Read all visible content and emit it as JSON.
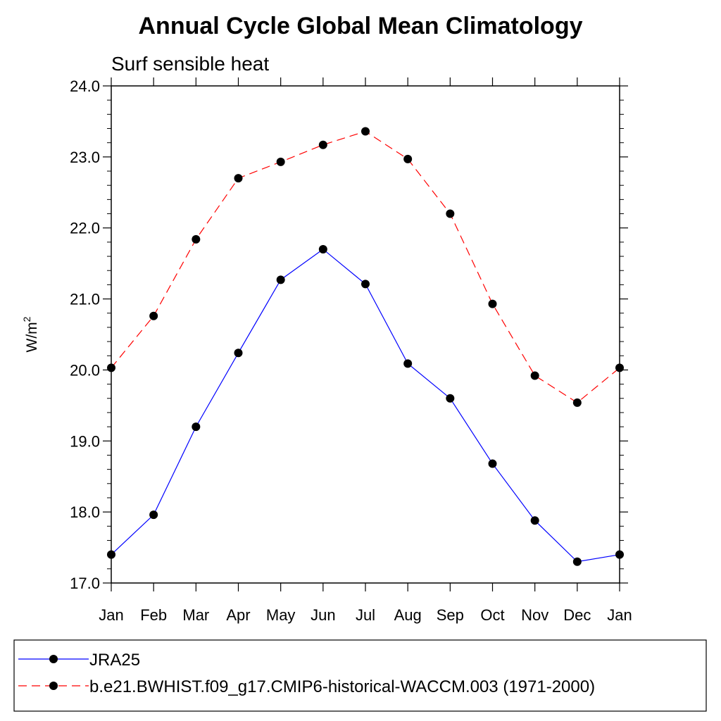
{
  "chart_data": {
    "type": "line",
    "title": "Annual Cycle Global Mean Climatology",
    "subtitle": "Surf sensible heat",
    "ylabel": "W/m",
    "ylabel_superscript": "2",
    "ylim": [
      17.0,
      24.0
    ],
    "y_ticks": [
      "17.0",
      "18.0",
      "19.0",
      "20.0",
      "21.0",
      "22.0",
      "23.0",
      "24.0"
    ],
    "categories": [
      "Jan",
      "Feb",
      "Mar",
      "Apr",
      "May",
      "Jun",
      "Jul",
      "Aug",
      "Sep",
      "Oct",
      "Nov",
      "Dec",
      "Jan"
    ],
    "grid": false,
    "legend_position": "bottom",
    "series": [
      {
        "name": "JRA25",
        "color": "#0000ff",
        "dashed": false,
        "values": [
          17.4,
          17.96,
          19.2,
          20.24,
          21.27,
          21.7,
          21.21,
          20.09,
          19.6,
          18.68,
          17.88,
          17.3,
          17.4
        ]
      },
      {
        "name": "b.e21.BWHIST.f09_g17.CMIP6-historical-WACCM.003 (1971-2000)",
        "color": "#ff0000",
        "dashed": true,
        "values": [
          20.03,
          20.76,
          21.84,
          22.7,
          22.93,
          23.17,
          23.36,
          22.97,
          22.2,
          20.93,
          19.92,
          19.54,
          20.03
        ]
      }
    ]
  }
}
